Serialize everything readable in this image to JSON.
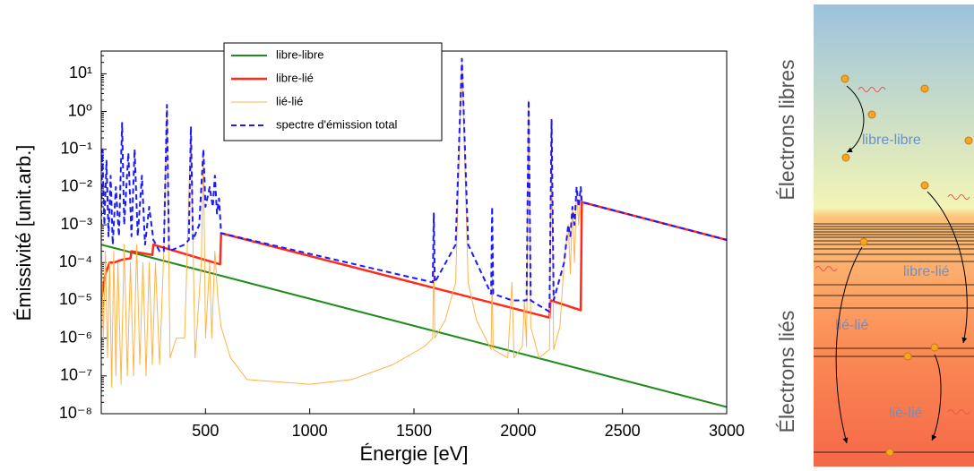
{
  "chart_data": {
    "type": "line",
    "xlabel": "Énergie [eV]",
    "ylabel": "Émissivité [unit.arb.]",
    "xlim": [
      0,
      3000
    ],
    "xticks": [
      500,
      1000,
      1500,
      2000,
      2500,
      3000
    ],
    "ylim": [
      1e-08,
      40
    ],
    "ylog": true,
    "grid": false,
    "legend": "upper center",
    "yticks": [
      {
        "value": 1e-08,
        "label": "10⁻⁸"
      },
      {
        "value": 1e-07,
        "label": "10⁻⁷"
      },
      {
        "value": 1e-06,
        "label": "10⁻⁶"
      },
      {
        "value": 1e-05,
        "label": "10⁻⁵"
      },
      {
        "value": 0.0001,
        "label": "10⁻⁴"
      },
      {
        "value": 0.001,
        "label": "10⁻³"
      },
      {
        "value": 0.01,
        "label": "10⁻²"
      },
      {
        "value": 0.1,
        "label": "10⁻¹"
      },
      {
        "value": 1,
        "label": "10⁰"
      },
      {
        "value": 10,
        "label": "10¹"
      }
    ],
    "series": [
      {
        "name": "libre-libre",
        "color": "#1e8c1e",
        "width": 2,
        "x": [
          0,
          3000
        ],
        "values": [
          0.0003,
          1.5e-08
        ]
      },
      {
        "name": "libre-lié",
        "color": "#ff2a1a",
        "width": 2.5,
        "x": [
          0,
          20,
          40,
          60,
          100,
          140,
          145,
          245,
          250,
          570,
          575,
          2150,
          2155,
          2300,
          2305,
          3000
        ],
        "values": [
          1e-05,
          5e-05,
          0.0001,
          0.0001,
          0.00012,
          0.00013,
          0.0002,
          0.00016,
          0.0003,
          9e-05,
          0.0006,
          3.5e-06,
          1e-05,
          5.5e-06,
          0.004,
          0.0004
        ]
      },
      {
        "name": "lié-lié",
        "color": "#ffb347",
        "width": 1,
        "x": [
          0,
          10,
          20,
          30,
          40,
          50,
          60,
          70,
          80,
          95,
          110,
          125,
          140,
          155,
          170,
          185,
          200,
          215,
          230,
          245,
          260,
          280,
          300,
          315,
          330,
          360,
          400,
          430,
          450,
          480,
          490,
          500,
          520,
          530,
          545,
          560,
          575,
          620,
          700,
          1000,
          1200,
          1400,
          1550,
          1590,
          1595,
          1600,
          1650,
          1700,
          1730,
          1760,
          1800,
          1870,
          1875,
          1880,
          1950,
          1970,
          1980,
          2020,
          2030,
          2040,
          2050,
          2060,
          2100,
          2150,
          2160,
          2170,
          2200,
          2220,
          2240,
          2250,
          2260,
          2270,
          2280,
          2290,
          2300
        ],
        "values": [
          0.0003,
          1e-06,
          0.0002,
          3e-07,
          0.0001,
          5e-08,
          0.0002,
          1e-07,
          0.0001,
          6e-08,
          0.0003,
          1e-07,
          0.0001,
          1e-07,
          0.0003,
          2e-07,
          0.0001,
          1e-07,
          0.0001,
          2e-07,
          0.0001,
          2e-07,
          0.0002,
          1.5,
          3e-07,
          1e-06,
          1e-06,
          0.4,
          3e-07,
          0.0001,
          0.1,
          1e-06,
          0.0001,
          1e-06,
          0.0002,
          1e-05,
          2e-06,
          3e-07,
          8e-08,
          6e-08,
          8e-08,
          2e-07,
          6e-07,
          1e-06,
          0.0002,
          1e-06,
          3e-06,
          3e-05,
          25,
          3e-05,
          3e-06,
          5e-07,
          5e-05,
          5e-07,
          3e-07,
          3e-05,
          3e-07,
          6e-07,
          1e-05,
          6e-07,
          2,
          2e-06,
          3e-07,
          5e-07,
          0.6,
          5e-07,
          2e-06,
          0.0001,
          0.001,
          5e-05,
          0.003,
          0.0001,
          0.01,
          0.001,
          0.01
        ]
      },
      {
        "name": "spectre d'émission total",
        "color": "#1a1aff",
        "width": 2,
        "dashed": true,
        "x": [
          0,
          5,
          15,
          25,
          35,
          45,
          55,
          70,
          85,
          100,
          110,
          130,
          145,
          160,
          175,
          195,
          210,
          230,
          250,
          280,
          300,
          315,
          325,
          400,
          420,
          430,
          440,
          470,
          490,
          500,
          520,
          535,
          545,
          555,
          565,
          575,
          1590,
          1595,
          1600,
          1700,
          1730,
          1760,
          1870,
          1875,
          1880,
          1970,
          1980,
          2040,
          2050,
          2060,
          2150,
          2160,
          2170,
          2220,
          2240,
          2250,
          2260,
          2270,
          2280,
          2290,
          2300,
          2305,
          3000
        ],
        "values": [
          0.001,
          0.1,
          0.001,
          0.05,
          0.0005,
          0.02,
          0.0003,
          0.01,
          0.0005,
          0.5,
          0.001,
          0.08,
          0.0005,
          0.1,
          0.0005,
          0.02,
          0.0003,
          0.003,
          0.0004,
          0.0002,
          0.0002,
          1.5,
          0.0002,
          0.0003,
          0.0004,
          0.4,
          0.0004,
          0.001,
          0.1,
          0.003,
          0.01,
          0.003,
          0.02,
          0.002,
          0.005,
          0.0006,
          3e-05,
          0.002,
          3e-05,
          0.0003,
          25,
          0.0003,
          1.5e-05,
          0.003,
          1.5e-05,
          1e-05,
          1e-05,
          1e-05,
          2,
          1e-05,
          5e-06,
          0.6,
          1e-05,
          0.0001,
          0.001,
          0.0005,
          0.003,
          0.001,
          0.01,
          0.003,
          0.01,
          0.004,
          0.0004
        ]
      }
    ]
  },
  "diagram": {
    "free_label": "Électrons libres",
    "bound_label": "Électrons liés",
    "ff": "libre-libre",
    "fb": "libre-lié",
    "bb1": "lié-lié",
    "bb2": "lié-lié"
  }
}
